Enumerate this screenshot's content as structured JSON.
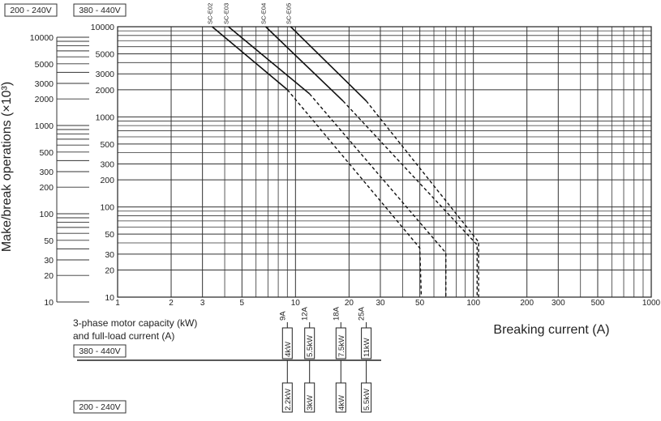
{
  "voltage_boxes": {
    "left": "200 - 240V",
    "main": "380 - 440V"
  },
  "ylabel": "Make/break operations (×10³)",
  "xlabel": "Breaking current (A)",
  "motor_caption": {
    "line1": "3-phase motor capacity (kW)",
    "line2": "and full-load current (A)"
  },
  "motor_voltage_labels": {
    "upper": "380 - 440V",
    "lower": "200 - 240V"
  },
  "chart_data": {
    "type": "line",
    "x_scale": "log",
    "y_scale": "log",
    "xlim": [
      1,
      1000
    ],
    "ylim": [
      10,
      10000
    ],
    "x_ticks": [
      1,
      2,
      3,
      5,
      10,
      20,
      30,
      50,
      100,
      200,
      300,
      500,
      1000
    ],
    "x_tick_labels": [
      "1",
      "2",
      "3",
      "5",
      "10",
      "20",
      "30",
      "50",
      "100",
      "200",
      "300",
      "500",
      "1000"
    ],
    "y_ticks": [
      10,
      20,
      30,
      50,
      100,
      200,
      300,
      500,
      1000,
      2000,
      3000,
      5000,
      10000
    ],
    "y_tick_labels": [
      "10",
      "20",
      "30",
      "50",
      "100",
      "200",
      "300",
      "500",
      "1000",
      "2000",
      "3000",
      "5000",
      "10000"
    ],
    "left_y_ticks": [
      10,
      20,
      30,
      50,
      100,
      200,
      300,
      500,
      1000,
      2000,
      3000,
      5000,
      10000
    ],
    "grid": true,
    "series": [
      {
        "name": "SC-E02",
        "solid": [
          [
            3.4,
            10000
          ],
          [
            9,
            2000
          ]
        ],
        "dashed": [
          [
            9,
            2000
          ],
          [
            50,
            35
          ],
          [
            51,
            10
          ]
        ]
      },
      {
        "name": "SC-E03",
        "solid": [
          [
            4.2,
            10000
          ],
          [
            12,
            1800
          ]
        ],
        "dashed": [
          [
            12,
            1800
          ],
          [
            70,
            31
          ],
          [
            70,
            10
          ]
        ]
      },
      {
        "name": "SC-E04",
        "solid": [
          [
            6.8,
            10000
          ],
          [
            18.5,
            1500
          ]
        ],
        "dashed": [
          [
            18.5,
            1500
          ],
          [
            105,
            38
          ],
          [
            105,
            10
          ]
        ]
      },
      {
        "name": "SC-E05",
        "solid": [
          [
            9.4,
            10000
          ],
          [
            25,
            1500
          ]
        ],
        "dashed": [
          [
            25,
            1500
          ],
          [
            107,
            41
          ],
          [
            107,
            10
          ]
        ]
      }
    ],
    "motor_rows": {
      "currents": [
        {
          "x": 9,
          "label": "9A"
        },
        {
          "x": 12,
          "label": "12A"
        },
        {
          "x": 18,
          "label": "18A"
        },
        {
          "x": 25,
          "label": "25A"
        }
      ],
      "kw_380_440": [
        {
          "x": 9,
          "label": "4kW"
        },
        {
          "x": 12,
          "label": "5.5kW"
        },
        {
          "x": 18,
          "label": "7.5kW"
        },
        {
          "x": 25,
          "label": "11kW"
        }
      ],
      "kw_200_240": [
        {
          "x": 9,
          "label": "2.2kW"
        },
        {
          "x": 12,
          "label": "3kW"
        },
        {
          "x": 18,
          "label": "4kW"
        },
        {
          "x": 25,
          "label": "5.5kW"
        }
      ]
    }
  }
}
